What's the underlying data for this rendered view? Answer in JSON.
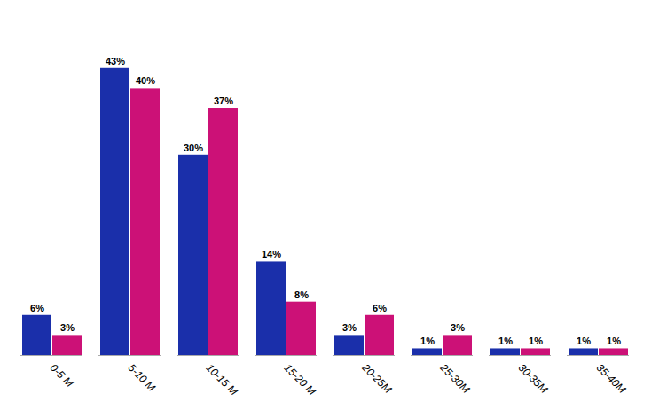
{
  "chart_data": {
    "type": "bar",
    "categories": [
      "0-5 M",
      "5-10 M",
      "10-15 M",
      "15-20 M",
      "20-25M",
      "25-30M",
      "30-35M",
      "35-40M"
    ],
    "series": [
      {
        "color": "#1a2faa",
        "values": [
          6,
          43,
          30,
          14,
          3,
          1,
          1,
          1
        ],
        "value_labels": [
          "6%",
          "43%",
          "30%",
          "14%",
          "3%",
          "1%",
          "1%",
          "1%"
        ]
      },
      {
        "color": "#cc1177",
        "values": [
          3,
          40,
          37,
          8,
          6,
          3,
          1,
          1
        ],
        "value_labels": [
          "3%",
          "40%",
          "37%",
          "8%",
          "6%",
          "3%",
          "1%",
          "1%"
        ]
      }
    ],
    "ylim": [
      0,
      50
    ],
    "grid": false,
    "data_labels": true,
    "tick_labels": "x"
  }
}
